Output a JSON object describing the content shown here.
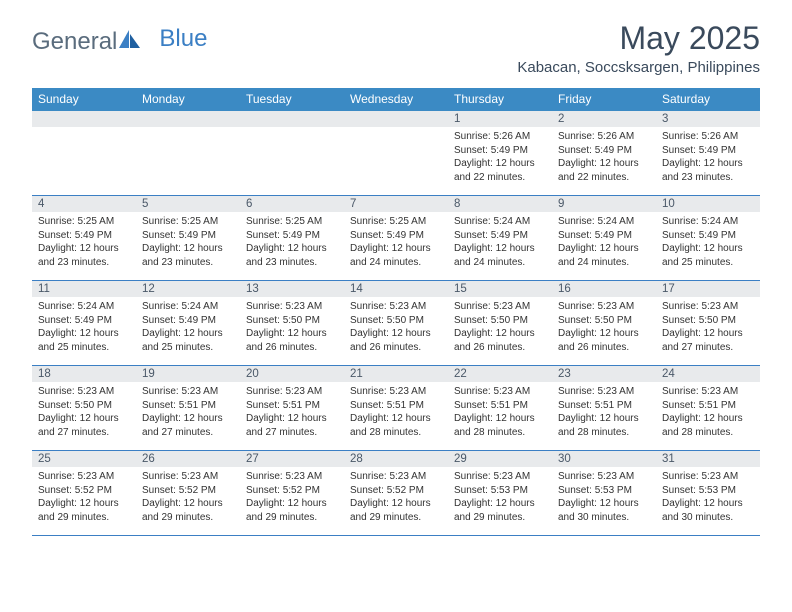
{
  "logo": {
    "text1": "General",
    "text2": "Blue"
  },
  "title": "May 2025",
  "location": "Kabacan, Soccsksargen, Philippines",
  "colors": {
    "header_bg": "#3b8ac4",
    "header_text": "#ffffff",
    "daynum_bg": "#e8eaec",
    "border": "#3b7fc4",
    "body_text": "#333333",
    "title_text": "#3a4a5c"
  },
  "day_headers": [
    "Sunday",
    "Monday",
    "Tuesday",
    "Wednesday",
    "Thursday",
    "Friday",
    "Saturday"
  ],
  "weeks": [
    [
      {
        "n": "",
        "lines": []
      },
      {
        "n": "",
        "lines": []
      },
      {
        "n": "",
        "lines": []
      },
      {
        "n": "",
        "lines": []
      },
      {
        "n": "1",
        "lines": [
          "Sunrise: 5:26 AM",
          "Sunset: 5:49 PM",
          "Daylight: 12 hours and 22 minutes."
        ]
      },
      {
        "n": "2",
        "lines": [
          "Sunrise: 5:26 AM",
          "Sunset: 5:49 PM",
          "Daylight: 12 hours and 22 minutes."
        ]
      },
      {
        "n": "3",
        "lines": [
          "Sunrise: 5:26 AM",
          "Sunset: 5:49 PM",
          "Daylight: 12 hours and 23 minutes."
        ]
      }
    ],
    [
      {
        "n": "4",
        "lines": [
          "Sunrise: 5:25 AM",
          "Sunset: 5:49 PM",
          "Daylight: 12 hours and 23 minutes."
        ]
      },
      {
        "n": "5",
        "lines": [
          "Sunrise: 5:25 AM",
          "Sunset: 5:49 PM",
          "Daylight: 12 hours and 23 minutes."
        ]
      },
      {
        "n": "6",
        "lines": [
          "Sunrise: 5:25 AM",
          "Sunset: 5:49 PM",
          "Daylight: 12 hours and 23 minutes."
        ]
      },
      {
        "n": "7",
        "lines": [
          "Sunrise: 5:25 AM",
          "Sunset: 5:49 PM",
          "Daylight: 12 hours and 24 minutes."
        ]
      },
      {
        "n": "8",
        "lines": [
          "Sunrise: 5:24 AM",
          "Sunset: 5:49 PM",
          "Daylight: 12 hours and 24 minutes."
        ]
      },
      {
        "n": "9",
        "lines": [
          "Sunrise: 5:24 AM",
          "Sunset: 5:49 PM",
          "Daylight: 12 hours and 24 minutes."
        ]
      },
      {
        "n": "10",
        "lines": [
          "Sunrise: 5:24 AM",
          "Sunset: 5:49 PM",
          "Daylight: 12 hours and 25 minutes."
        ]
      }
    ],
    [
      {
        "n": "11",
        "lines": [
          "Sunrise: 5:24 AM",
          "Sunset: 5:49 PM",
          "Daylight: 12 hours and 25 minutes."
        ]
      },
      {
        "n": "12",
        "lines": [
          "Sunrise: 5:24 AM",
          "Sunset: 5:49 PM",
          "Daylight: 12 hours and 25 minutes."
        ]
      },
      {
        "n": "13",
        "lines": [
          "Sunrise: 5:23 AM",
          "Sunset: 5:50 PM",
          "Daylight: 12 hours and 26 minutes."
        ]
      },
      {
        "n": "14",
        "lines": [
          "Sunrise: 5:23 AM",
          "Sunset: 5:50 PM",
          "Daylight: 12 hours and 26 minutes."
        ]
      },
      {
        "n": "15",
        "lines": [
          "Sunrise: 5:23 AM",
          "Sunset: 5:50 PM",
          "Daylight: 12 hours and 26 minutes."
        ]
      },
      {
        "n": "16",
        "lines": [
          "Sunrise: 5:23 AM",
          "Sunset: 5:50 PM",
          "Daylight: 12 hours and 26 minutes."
        ]
      },
      {
        "n": "17",
        "lines": [
          "Sunrise: 5:23 AM",
          "Sunset: 5:50 PM",
          "Daylight: 12 hours and 27 minutes."
        ]
      }
    ],
    [
      {
        "n": "18",
        "lines": [
          "Sunrise: 5:23 AM",
          "Sunset: 5:50 PM",
          "Daylight: 12 hours and 27 minutes."
        ]
      },
      {
        "n": "19",
        "lines": [
          "Sunrise: 5:23 AM",
          "Sunset: 5:51 PM",
          "Daylight: 12 hours and 27 minutes."
        ]
      },
      {
        "n": "20",
        "lines": [
          "Sunrise: 5:23 AM",
          "Sunset: 5:51 PM",
          "Daylight: 12 hours and 27 minutes."
        ]
      },
      {
        "n": "21",
        "lines": [
          "Sunrise: 5:23 AM",
          "Sunset: 5:51 PM",
          "Daylight: 12 hours and 28 minutes."
        ]
      },
      {
        "n": "22",
        "lines": [
          "Sunrise: 5:23 AM",
          "Sunset: 5:51 PM",
          "Daylight: 12 hours and 28 minutes."
        ]
      },
      {
        "n": "23",
        "lines": [
          "Sunrise: 5:23 AM",
          "Sunset: 5:51 PM",
          "Daylight: 12 hours and 28 minutes."
        ]
      },
      {
        "n": "24",
        "lines": [
          "Sunrise: 5:23 AM",
          "Sunset: 5:51 PM",
          "Daylight: 12 hours and 28 minutes."
        ]
      }
    ],
    [
      {
        "n": "25",
        "lines": [
          "Sunrise: 5:23 AM",
          "Sunset: 5:52 PM",
          "Daylight: 12 hours and 29 minutes."
        ]
      },
      {
        "n": "26",
        "lines": [
          "Sunrise: 5:23 AM",
          "Sunset: 5:52 PM",
          "Daylight: 12 hours and 29 minutes."
        ]
      },
      {
        "n": "27",
        "lines": [
          "Sunrise: 5:23 AM",
          "Sunset: 5:52 PM",
          "Daylight: 12 hours and 29 minutes."
        ]
      },
      {
        "n": "28",
        "lines": [
          "Sunrise: 5:23 AM",
          "Sunset: 5:52 PM",
          "Daylight: 12 hours and 29 minutes."
        ]
      },
      {
        "n": "29",
        "lines": [
          "Sunrise: 5:23 AM",
          "Sunset: 5:53 PM",
          "Daylight: 12 hours and 29 minutes."
        ]
      },
      {
        "n": "30",
        "lines": [
          "Sunrise: 5:23 AM",
          "Sunset: 5:53 PM",
          "Daylight: 12 hours and 30 minutes."
        ]
      },
      {
        "n": "31",
        "lines": [
          "Sunrise: 5:23 AM",
          "Sunset: 5:53 PM",
          "Daylight: 12 hours and 30 minutes."
        ]
      }
    ]
  ]
}
